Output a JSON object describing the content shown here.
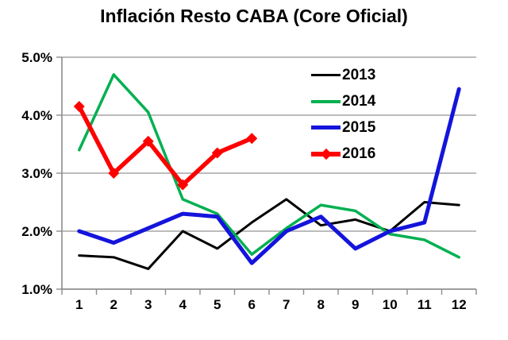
{
  "title": "Inflación Resto CABA (Core Oficial)",
  "colors": {
    "background": "#FFFFFF",
    "gridline": "#A6A6A6",
    "axis": "#8C8C8C",
    "text": "#000000",
    "series_2013": "#000000",
    "series_2014": "#00B050",
    "series_2015": "#1414DC",
    "series_2016": "#FF0000"
  },
  "chart_data": {
    "type": "line",
    "title": "Inflación Resto CABA (Core Oficial)",
    "xlabel": "",
    "ylabel": "",
    "categories": [
      "1",
      "2",
      "3",
      "4",
      "5",
      "6",
      "7",
      "8",
      "9",
      "10",
      "11",
      "12"
    ],
    "ylim": [
      1.0,
      5.0
    ],
    "y_ticks": [
      {
        "label": "5.0%",
        "value": 5.0
      },
      {
        "label": "4.0%",
        "value": 4.0
      },
      {
        "label": "3.0%",
        "value": 3.0
      },
      {
        "label": "2.0%",
        "value": 2.0
      },
      {
        "label": "1.0%",
        "value": 1.0
      }
    ],
    "grid": true,
    "legend_position": "inside-top-right",
    "series": [
      {
        "name": "2013",
        "color": "#000000",
        "width": 3,
        "marker": "none",
        "values": [
          1.58,
          1.55,
          1.35,
          2.0,
          1.7,
          2.15,
          2.55,
          2.1,
          2.2,
          2.0,
          2.5,
          2.45
        ]
      },
      {
        "name": "2014",
        "color": "#00B050",
        "width": 3.5,
        "marker": "none",
        "values": [
          3.4,
          4.7,
          4.05,
          2.55,
          2.3,
          1.6,
          2.05,
          2.45,
          2.35,
          1.95,
          1.85,
          1.55
        ]
      },
      {
        "name": "2015",
        "color": "#1414DC",
        "width": 5,
        "marker": "none",
        "values": [
          2.0,
          1.8,
          2.05,
          2.3,
          2.25,
          1.45,
          2.0,
          2.25,
          1.7,
          2.0,
          2.15,
          4.45
        ]
      },
      {
        "name": "2016",
        "color": "#FF0000",
        "width": 5.5,
        "marker": "diamond",
        "values": [
          4.15,
          3.0,
          3.55,
          2.8,
          3.35,
          3.6,
          null,
          null,
          null,
          null,
          null,
          null
        ]
      }
    ]
  }
}
